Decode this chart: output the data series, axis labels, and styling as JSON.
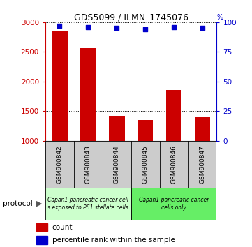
{
  "title": "GDS5099 / ILMN_1745076",
  "samples": [
    "GSM900842",
    "GSM900843",
    "GSM900844",
    "GSM900845",
    "GSM900846",
    "GSM900847"
  ],
  "counts": [
    2860,
    2560,
    1420,
    1350,
    1860,
    1410
  ],
  "percentiles": [
    97,
    96,
    95,
    94,
    96,
    95
  ],
  "ylim_left": [
    1000,
    3000
  ],
  "ylim_right": [
    0,
    100
  ],
  "yticks_left": [
    1000,
    1500,
    2000,
    2500,
    3000
  ],
  "yticks_right": [
    0,
    25,
    50,
    75,
    100
  ],
  "bar_color": "#cc0000",
  "dot_color": "#0000cc",
  "bar_width": 0.55,
  "protocol_groups": [
    {
      "label": "Capan1 pancreatic cancer cell\ns exposed to PS1 stellate cells",
      "start": 0,
      "end": 3,
      "color": "#ccffcc"
    },
    {
      "label": "Capan1 pancreatic cancer\ncells only",
      "start": 3,
      "end": 6,
      "color": "#66ee66"
    }
  ],
  "legend_count_label": "count",
  "legend_percentile_label": "percentile rank within the sample",
  "protocol_label": "protocol"
}
